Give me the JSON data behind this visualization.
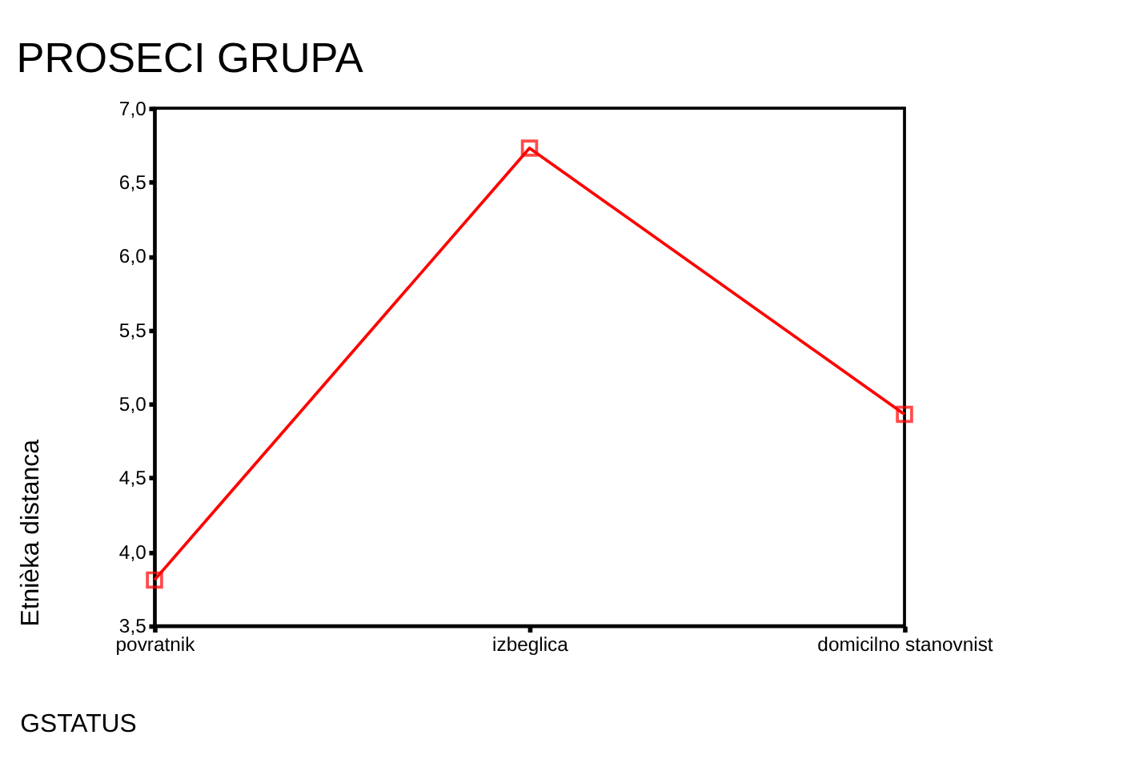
{
  "chart_data": {
    "type": "line",
    "title": "PROSECI GRUPA",
    "xlabel": "GSTATUS",
    "ylabel": "Etnièka distanca",
    "categories": [
      "povratnik",
      "izbeglica",
      "domicilno stanovnist"
    ],
    "series": [
      {
        "color": "#ff0000",
        "values": [
          3.81,
          6.73,
          4.93
        ]
      }
    ],
    "ylim": [
      3.5,
      7.0
    ],
    "yticks": [
      {
        "value": 3.5,
        "label": "3,5"
      },
      {
        "value": 4.0,
        "label": "4,0"
      },
      {
        "value": 4.5,
        "label": "4,5"
      },
      {
        "value": 5.0,
        "label": "5,0"
      },
      {
        "value": 5.5,
        "label": "5,5"
      },
      {
        "value": 6.0,
        "label": "6,0"
      },
      {
        "value": 6.5,
        "label": "6,5"
      },
      {
        "value": 7.0,
        "label": "7,0"
      }
    ],
    "marker": "square",
    "line_style": "solid",
    "grid": false,
    "legend": false
  }
}
